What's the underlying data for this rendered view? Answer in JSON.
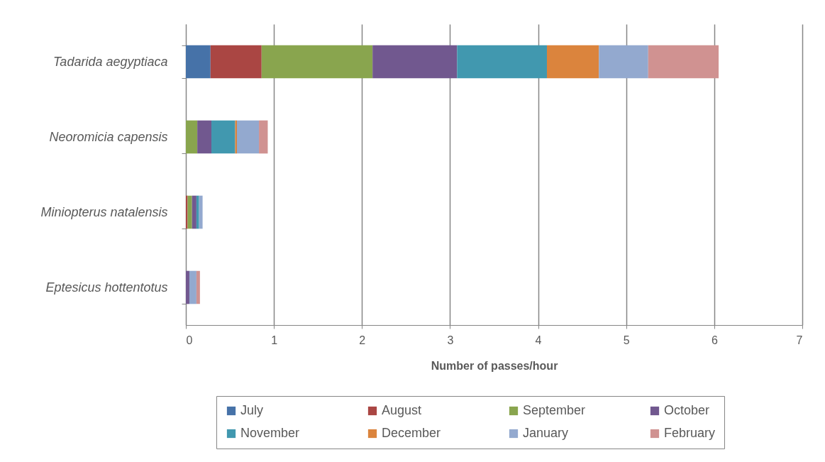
{
  "chart_data": {
    "type": "bar",
    "orientation": "horizontal",
    "stacked": true,
    "xlabel": "Number of passes/hour",
    "categories": [
      "Tadarida aegyptiaca",
      "Neoromicia capensis",
      "Miniopterus natalensis",
      "Eptesicus hottentotus"
    ],
    "series": [
      {
        "name": "July",
        "color": "#4672a8",
        "values": [
          0.28,
          0,
          0,
          0
        ]
      },
      {
        "name": "August",
        "color": "#aa4643",
        "values": [
          0.58,
          0,
          0.02,
          0
        ]
      },
      {
        "name": "September",
        "color": "#89a54e",
        "values": [
          1.26,
          0.13,
          0.05,
          0
        ]
      },
      {
        "name": "October",
        "color": "#71588f",
        "values": [
          0.96,
          0.16,
          0.05,
          0.04
        ]
      },
      {
        "name": "November",
        "color": "#4198af",
        "values": [
          1.02,
          0.27,
          0.03,
          0
        ]
      },
      {
        "name": "December",
        "color": "#db843d",
        "values": [
          0.59,
          0.02,
          0,
          0
        ]
      },
      {
        "name": "January",
        "color": "#93a9cf",
        "values": [
          0.56,
          0.25,
          0.04,
          0.08
        ]
      },
      {
        "name": "February",
        "color": "#d09291",
        "values": [
          0.8,
          0.1,
          0,
          0.04
        ]
      }
    ],
    "xlim": [
      0,
      7
    ],
    "xticks": [
      0,
      1,
      2,
      3,
      4,
      5,
      6,
      7
    ],
    "grid": "x",
    "legend": "bottom"
  }
}
